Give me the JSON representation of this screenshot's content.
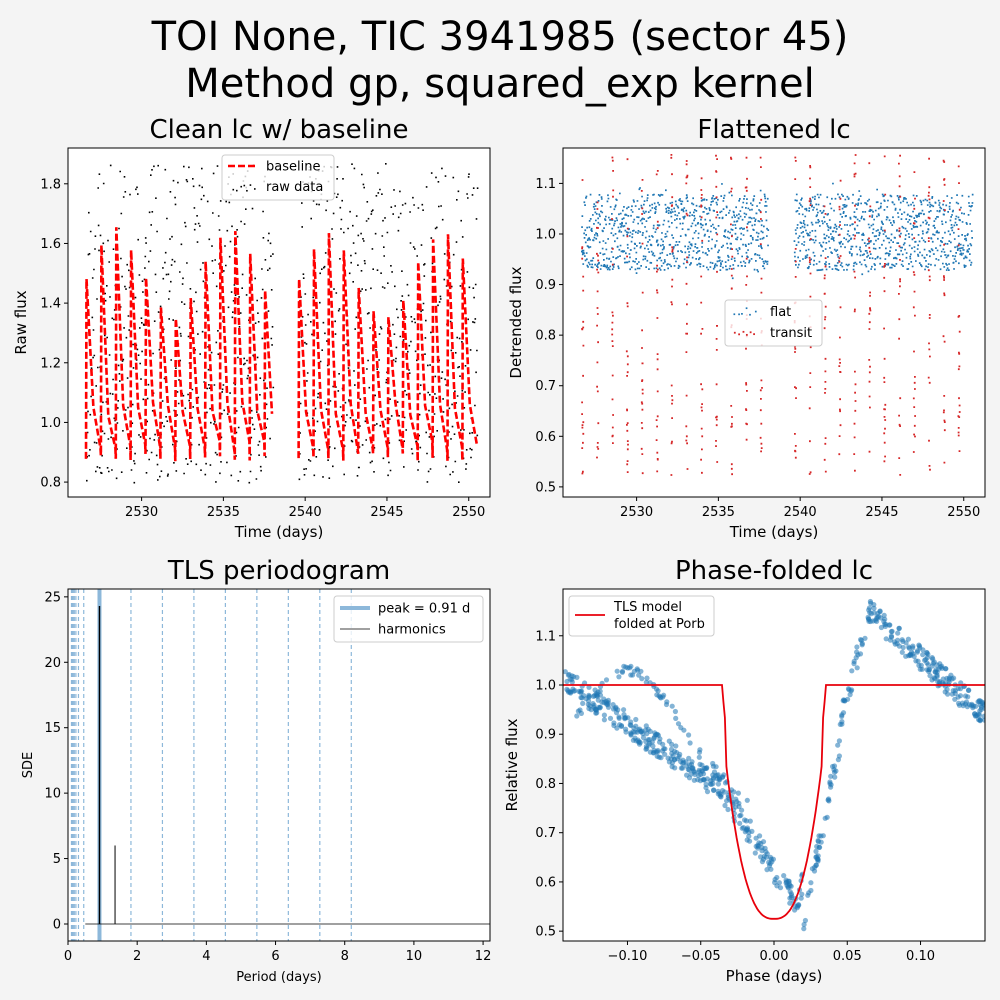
{
  "figure": {
    "title_line1": "TOI None, TIC 3941985 (sector 45)",
    "title_line2": "Method gp, squared_exp kernel"
  },
  "chart_data": [
    {
      "type": "scatter",
      "title": "Clean lc w/ baseline",
      "xlabel": "Time (days)",
      "ylabel": "Raw flux",
      "xlim": [
        2525.5,
        2551.3
      ],
      "ylim": [
        0.75,
        1.92
      ],
      "xticks": [
        2530,
        2535,
        2540,
        2545,
        2550
      ],
      "yticks": [
        0.8,
        1.0,
        1.2,
        1.4,
        1.6,
        1.8
      ],
      "legend_placement": "top-center",
      "series": [
        {
          "name": "baseline",
          "color": "#ff0000",
          "style": "dashed"
        },
        {
          "name": "raw data",
          "color": "#000000",
          "style": "points"
        }
      ],
      "segments": [
        [
          2526.6,
          2538.0
        ],
        [
          2539.6,
          2550.5
        ]
      ],
      "period_days": 0.91,
      "raw_range": [
        0.8,
        1.87
      ],
      "baseline_range": [
        0.86,
        1.64
      ]
    },
    {
      "type": "scatter",
      "title": "Flattened lc",
      "xlabel": "Time (days)",
      "ylabel": "Detrended flux",
      "xlim": [
        2525.5,
        2551.3
      ],
      "ylim": [
        0.48,
        1.17
      ],
      "xticks": [
        2530,
        2535,
        2540,
        2545,
        2550
      ],
      "yticks": [
        0.5,
        0.6,
        0.7,
        0.8,
        0.9,
        1.0,
        1.1
      ],
      "legend_placement": "center",
      "series": [
        {
          "name": "flat",
          "color": "#1f77b4",
          "style": "points"
        },
        {
          "name": "transit",
          "color": "#d62728",
          "style": "points"
        }
      ],
      "band_range": [
        0.93,
        1.08
      ],
      "transit_range": [
        0.52,
        1.16
      ]
    },
    {
      "type": "line",
      "title": "TLS periodogram",
      "xlabel": "Period (days)",
      "ylabel": "SDE",
      "xlim": [
        0,
        12.2
      ],
      "ylim": [
        -1.3,
        25.6
      ],
      "xticks": [
        0,
        2,
        4,
        6,
        8,
        10,
        12
      ],
      "yticks": [
        0,
        5,
        10,
        15,
        20,
        25
      ],
      "legend_placement": "top-right",
      "peak_label": "peak = 0.91 d",
      "harmonics_label": "harmonics",
      "peak_period": 0.91,
      "peak_sde": 24.3,
      "secondary_peak": {
        "period": 1.36,
        "sde": 6.0
      },
      "harmonic_periods": [
        0.1,
        0.114,
        0.13,
        0.152,
        0.182,
        0.228,
        0.303,
        0.455,
        1.82,
        2.73,
        3.64,
        4.55,
        5.46,
        6.37,
        7.28,
        8.19
      ]
    },
    {
      "type": "scatter",
      "title": "Phase-folded lc",
      "xlabel": "Phase (days)",
      "ylabel": "Relative flux",
      "xlim": [
        -0.144,
        0.144
      ],
      "ylim": [
        0.48,
        1.195
      ],
      "xticks": [
        -0.1,
        -0.05,
        0.0,
        0.05,
        0.1
      ],
      "xtick_labels": [
        "−0.10",
        "−0.05",
        "0.00",
        "0.05",
        "0.10"
      ],
      "yticks": [
        0.5,
        0.6,
        0.7,
        0.8,
        0.9,
        1.0,
        1.1
      ],
      "legend_placement": "top-left",
      "model_label_line1": "TLS model",
      "model_label_line2": "folded at Porb",
      "transit_half_width": 0.0355,
      "transit_depth_min": 0.525
    }
  ],
  "colors": {
    "baseline": "#ff0000",
    "raw": "#000000",
    "flat": "#1f77b4",
    "transit": "#d62728",
    "model": "#e8000b",
    "peak": "#8db8da"
  }
}
